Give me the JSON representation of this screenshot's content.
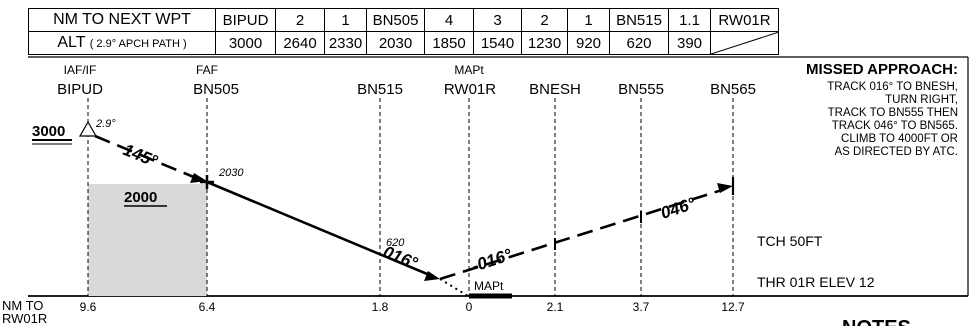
{
  "table": {
    "row1": {
      "label": "NM TO NEXT WPT",
      "cells": [
        "BIPUD",
        "2",
        "1",
        "BN505",
        "4",
        "3",
        "2",
        "1",
        "BN515",
        "1.1",
        "RW01R"
      ]
    },
    "row2": {
      "label_main": "ALT",
      "label_sub": "( 2.9° APCH PATH )",
      "cells": [
        "3000",
        "2640",
        "2330",
        "2030",
        "1850",
        "1540",
        "1230",
        "920",
        "620",
        "390"
      ]
    }
  },
  "fixes": {
    "bipud_role": "IAF/IF",
    "bipud": "BIPUD",
    "bn505_role": "FAF",
    "bn505": "BN505",
    "bn515": "BN515",
    "mapt_role": "MAPt",
    "rw01r": "RW01R",
    "bnesh": "BNESH",
    "bn555": "BN555",
    "bn565": "BN565"
  },
  "profile": {
    "start_alt": "3000",
    "glide_angle": "2.9°",
    "track_inbound": "145°",
    "faf_alt": "2030",
    "min_alt": "2000",
    "bn515_alt": "620",
    "track_final": "016°",
    "track_missed_1": "-016°",
    "track_missed_2": "046°",
    "mapt_label": "MAPt",
    "tch": "TCH 50FT",
    "thr_elev": "THR 01R ELEV 12"
  },
  "missed_approach": {
    "title": "MISSED APPROACH:",
    "lines": [
      "TRACK 016° TO BNESH,",
      "TURN RIGHT,",
      "TRACK TO BN555 THEN",
      "TRACK 046° TO BN565.",
      "CLIMB TO 4000FT OR",
      "AS DIRECTED BY ATC."
    ]
  },
  "distance_scale": {
    "label_line1": "NM TO",
    "label_line2": "RW01R",
    "values": [
      "9.6",
      "6.4",
      "1.8",
      "0",
      "2.1",
      "3.7",
      "12.7"
    ]
  },
  "notes_title": "NOTES"
}
